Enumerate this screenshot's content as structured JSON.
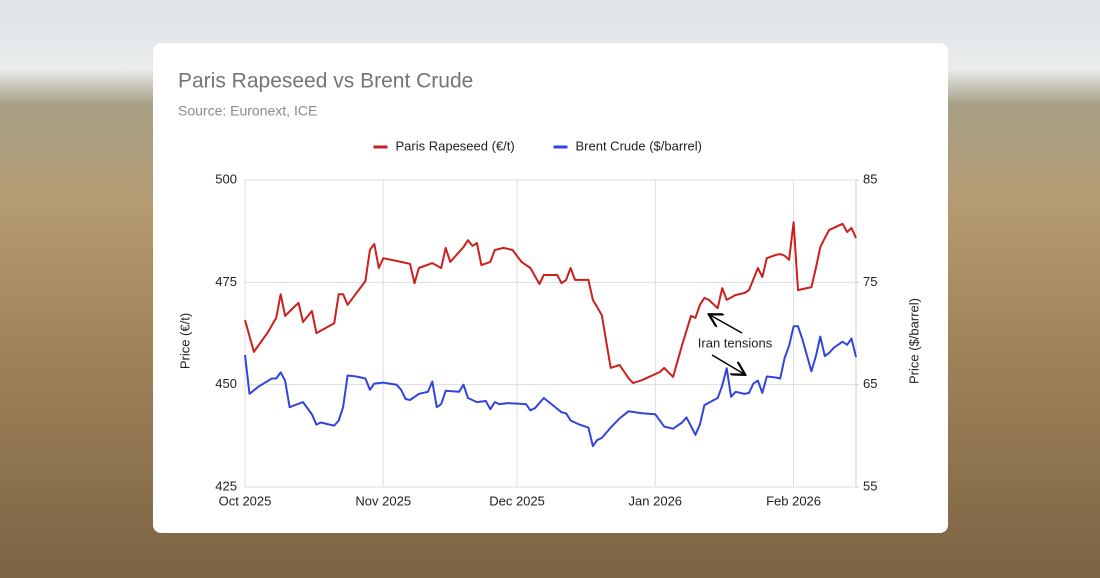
{
  "chart_data": {
    "type": "line",
    "title": "Paris Rapeseed vs Brent Crude",
    "subtitle": "Source: Euronext, ICE",
    "ylabel": "Price (€/t)",
    "y2label": "Price ($/barrel)",
    "legend": "top",
    "grid": true,
    "annotation": "Iran tensions",
    "xlim": [
      0,
      137
    ],
    "xticks": [
      {
        "value": 0,
        "label": "Oct 2025"
      },
      {
        "value": 31,
        "label": "Nov 2025"
      },
      {
        "value": 61,
        "label": "Dec 2025"
      },
      {
        "value": 92,
        "label": "Jan 2026"
      },
      {
        "value": 123,
        "label": "Feb 2026"
      }
    ],
    "ylim": [
      425,
      500
    ],
    "yticks": [
      425,
      450,
      475,
      500
    ],
    "y2lim": [
      55,
      85
    ],
    "y2ticks": [
      55,
      65,
      75,
      85
    ],
    "series": [
      {
        "name": "Paris Rapeseed (€/t)",
        "color": "#cc1f1f",
        "x": [
          0,
          2,
          5,
          7,
          8,
          9,
          12,
          13,
          15,
          16,
          20,
          21,
          22,
          23,
          27,
          28,
          29,
          30,
          31,
          35,
          37,
          38,
          39,
          42,
          44,
          45,
          46,
          49,
          50,
          51,
          52,
          53,
          55,
          56,
          58,
          60,
          62,
          64,
          66,
          67,
          70,
          71,
          72,
          73,
          74,
          77,
          78,
          80,
          82,
          84,
          86,
          87,
          89,
          93,
          94,
          96,
          98,
          100,
          101,
          102,
          103,
          104,
          106,
          107,
          108,
          110,
          112,
          113,
          115,
          116,
          117,
          119,
          120,
          121,
          122,
          123,
          124,
          126,
          127,
          128,
          129,
          130,
          131,
          132,
          133,
          134,
          135,
          136,
          137
        ],
        "values": [
          465.8,
          458,
          462.6,
          466.3,
          472.1,
          466.8,
          470,
          465.3,
          468,
          462.6,
          465,
          472.1,
          472.1,
          469.5,
          475.3,
          482.9,
          484.4,
          478.5,
          480.9,
          480,
          479.5,
          474.8,
          478.5,
          479.7,
          478.5,
          483.4,
          480,
          483.6,
          485.3,
          483.9,
          484.6,
          479.2,
          480,
          482.9,
          483.4,
          482.9,
          480,
          478.5,
          474.6,
          476.8,
          476.8,
          474.8,
          475.6,
          478.5,
          475.6,
          475.6,
          470.7,
          467,
          454.1,
          454.8,
          451.6,
          450.4,
          451.1,
          453.1,
          454.1,
          451.9,
          459.7,
          466.8,
          466.3,
          469.5,
          471.2,
          470.7,
          468.7,
          473.6,
          470.7,
          471.9,
          472.4,
          473.1,
          478.5,
          476.3,
          480.9,
          481.7,
          481.9,
          481.5,
          480.5,
          489.7,
          473.1,
          473.6,
          473.8,
          478.5,
          483.6,
          485.8,
          487.8,
          488.3,
          488.8,
          489.3,
          487.3,
          488.3,
          485.8
        ]
      },
      {
        "name": "Brent Crude ($/barrel)",
        "color": "#3344dd",
        "axis": "y2",
        "x": [
          0,
          1,
          3,
          6,
          7,
          8,
          9,
          10,
          13,
          15,
          16,
          17,
          19,
          20,
          21,
          22,
          23,
          25,
          27,
          28,
          29,
          31,
          34,
          35,
          36,
          37,
          39,
          41,
          42,
          43,
          44,
          45,
          48,
          49,
          50,
          52,
          54,
          55,
          56,
          57,
          59,
          63,
          64,
          65,
          67,
          69,
          71,
          72,
          73,
          75,
          77,
          78,
          79,
          80,
          82,
          84,
          86,
          89,
          92,
          94,
          96,
          98,
          99,
          101,
          102,
          103,
          106,
          107,
          108,
          109,
          110,
          112,
          113,
          114,
          115,
          116,
          117,
          119,
          120,
          121,
          122,
          123,
          124,
          125,
          127,
          128,
          129,
          130,
          131,
          132,
          134,
          135,
          136,
          137
        ],
        "values": [
          67.9,
          64.1,
          64.8,
          65.6,
          65.6,
          66.2,
          65.4,
          62.8,
          63.3,
          62.1,
          61.1,
          61.3,
          61.1,
          61,
          61.5,
          62.8,
          65.9,
          65.8,
          65.6,
          64.5,
          65.1,
          65.2,
          65,
          64.5,
          63.6,
          63.5,
          64.1,
          64.3,
          65.3,
          62.8,
          63.1,
          64.4,
          64.3,
          65,
          63.7,
          63.3,
          63.4,
          62.6,
          63.3,
          63.1,
          63.2,
          63.1,
          62.5,
          62.7,
          63.7,
          63,
          62.3,
          62.2,
          61.5,
          61.1,
          60.8,
          59,
          59.6,
          59.8,
          60.8,
          61.7,
          62.4,
          62.2,
          62.1,
          60.9,
          60.7,
          61.3,
          61.8,
          60.1,
          61.1,
          63,
          63.7,
          64.9,
          66.6,
          63.8,
          64.3,
          64.1,
          64.2,
          65.1,
          65.4,
          64.2,
          65.8,
          65.7,
          65.6,
          67.6,
          68.8,
          70.7,
          70.7,
          69.4,
          66.3,
          67.8,
          69.7,
          67.8,
          68.1,
          68.6,
          69.2,
          68.9,
          69.5,
          67.7
        ]
      }
    ]
  }
}
